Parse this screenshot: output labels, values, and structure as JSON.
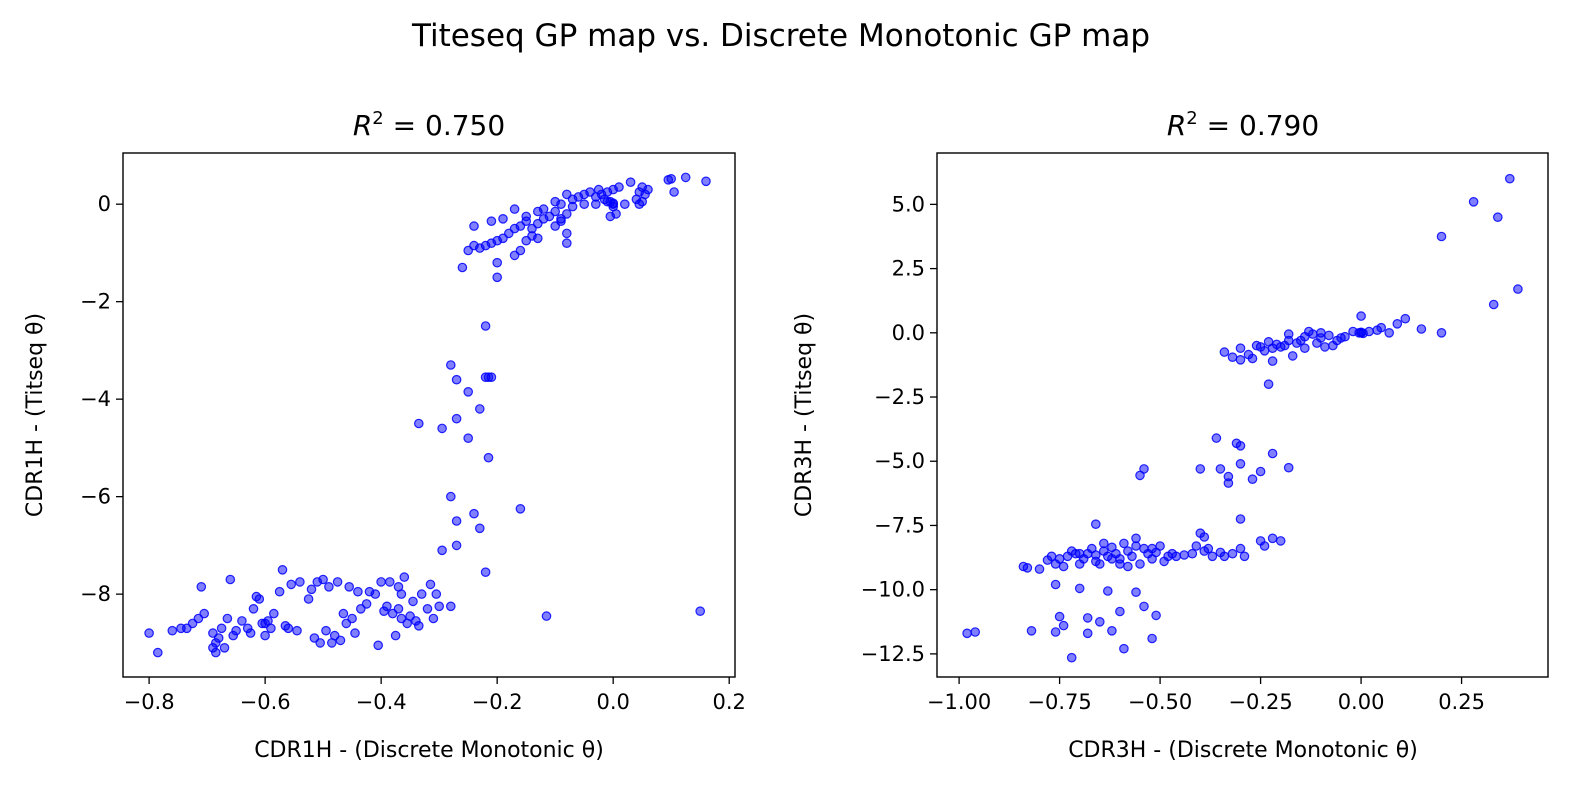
{
  "figure_title": "Titeseq GP map vs. Discrete Monotonic GP map",
  "marker_color": "#0000ff",
  "chart_data": [
    {
      "type": "scatter",
      "title_prefix": "R",
      "title_sup": "2",
      "title_suffix": " = 0.750",
      "xlabel": "CDR1H - (Discrete Monotonic θ)",
      "ylabel": "CDR1H - (Titseq θ)",
      "xlim": [
        -0.845,
        0.21
      ],
      "ylim": [
        -9.7,
        1.05
      ],
      "xticks": [
        -0.8,
        -0.6,
        -0.4,
        -0.2,
        0.0,
        0.2
      ],
      "xtick_labels": [
        "−0.8",
        "−0.6",
        "−0.4",
        "−0.2",
        "0.0",
        "0.2"
      ],
      "yticks": [
        0,
        -2,
        -4,
        -6,
        -8
      ],
      "ytick_labels": [
        "0",
        "−2",
        "−4",
        "−6",
        "−8"
      ],
      "grid": false,
      "points": [
        [
          0.125,
          0.55
        ],
        [
          0.1,
          0.52
        ],
        [
          0.095,
          0.5
        ],
        [
          0.16,
          0.47
        ],
        [
          0.105,
          0.25
        ],
        [
          0.06,
          0.3
        ],
        [
          0.05,
          0.35
        ],
        [
          0.045,
          0.25
        ],
        [
          0.055,
          0.2
        ],
        [
          0.04,
          0.1
        ],
        [
          0.05,
          0.05
        ],
        [
          0.045,
          0.0
        ],
        [
          0.03,
          0.45
        ],
        [
          0.01,
          0.35
        ],
        [
          0.0,
          0.3
        ],
        [
          -0.01,
          0.25
        ],
        [
          -0.02,
          0.2
        ],
        [
          -0.03,
          0.15
        ],
        [
          -0.025,
          0.3
        ],
        [
          -0.04,
          0.25
        ],
        [
          -0.05,
          0.2
        ],
        [
          -0.06,
          0.15
        ],
        [
          -0.07,
          0.1
        ],
        [
          -0.08,
          0.2
        ],
        [
          -0.09,
          0.0
        ],
        [
          -0.1,
          0.05
        ],
        [
          0.0,
          0.0
        ],
        [
          0.0,
          -0.05
        ],
        [
          0.0,
          0.02
        ],
        [
          0.005,
          -0.2
        ],
        [
          0.02,
          0.0
        ],
        [
          -0.005,
          0.05
        ],
        [
          -0.01,
          0.05
        ],
        [
          -0.005,
          -0.25
        ],
        [
          -0.015,
          0.1
        ],
        [
          -0.03,
          0.0
        ],
        [
          -0.05,
          0.0
        ],
        [
          -0.07,
          -0.05
        ],
        [
          -0.08,
          -0.2
        ],
        [
          -0.09,
          -0.35
        ],
        [
          -0.1,
          -0.15
        ],
        [
          -0.11,
          -0.25
        ],
        [
          -0.12,
          -0.3
        ],
        [
          -0.13,
          -0.4
        ],
        [
          -0.14,
          -0.5
        ],
        [
          -0.15,
          -0.35
        ],
        [
          -0.16,
          -0.45
        ],
        [
          -0.17,
          -0.5
        ],
        [
          -0.18,
          -0.6
        ],
        [
          -0.19,
          -0.7
        ],
        [
          -0.2,
          -0.75
        ],
        [
          -0.21,
          -0.8
        ],
        [
          -0.22,
          -0.85
        ],
        [
          -0.23,
          -0.9
        ],
        [
          -0.24,
          -0.85
        ],
        [
          -0.25,
          -0.95
        ],
        [
          -0.26,
          -1.3
        ],
        [
          -0.24,
          -0.45
        ],
        [
          -0.21,
          -0.35
        ],
        [
          -0.19,
          -0.3
        ],
        [
          -0.17,
          -0.1
        ],
        [
          -0.15,
          -0.25
        ],
        [
          -0.13,
          -0.15
        ],
        [
          -0.12,
          -0.1
        ],
        [
          -0.14,
          -0.65
        ],
        [
          -0.15,
          -0.75
        ],
        [
          -0.16,
          -0.95
        ],
        [
          -0.17,
          -1.05
        ],
        [
          -0.08,
          -0.6
        ],
        [
          -0.08,
          -0.8
        ],
        [
          -0.2,
          -1.2
        ],
        [
          -0.2,
          -1.5
        ],
        [
          -0.13,
          -0.7
        ],
        [
          -0.1,
          -0.45
        ],
        [
          -0.09,
          -0.3
        ],
        [
          -0.22,
          -2.5
        ],
        [
          -0.22,
          -3.55
        ],
        [
          -0.215,
          -3.55
        ],
        [
          -0.21,
          -3.55
        ],
        [
          -0.28,
          -3.3
        ],
        [
          -0.27,
          -3.6
        ],
        [
          -0.25,
          -3.85
        ],
        [
          -0.23,
          -4.2
        ],
        [
          -0.27,
          -4.4
        ],
        [
          -0.335,
          -4.5
        ],
        [
          -0.295,
          -4.6
        ],
        [
          -0.25,
          -4.8
        ],
        [
          -0.215,
          -5.2
        ],
        [
          -0.28,
          -6.0
        ],
        [
          -0.16,
          -6.25
        ],
        [
          -0.24,
          -6.35
        ],
        [
          -0.27,
          -6.5
        ],
        [
          -0.23,
          -6.65
        ],
        [
          -0.27,
          -7.0
        ],
        [
          -0.295,
          -7.1
        ],
        [
          -0.22,
          -7.55
        ],
        [
          -0.28,
          -8.25
        ],
        [
          -0.115,
          -8.45
        ],
        [
          0.15,
          -8.35
        ],
        [
          -0.8,
          -8.8
        ],
        [
          -0.785,
          -9.2
        ],
        [
          -0.76,
          -8.75
        ],
        [
          -0.745,
          -8.7
        ],
        [
          -0.735,
          -8.7
        ],
        [
          -0.725,
          -8.6
        ],
        [
          -0.715,
          -8.5
        ],
        [
          -0.705,
          -8.4
        ],
        [
          -0.71,
          -7.85
        ],
        [
          -0.69,
          -8.8
        ],
        [
          -0.685,
          -9.0
        ],
        [
          -0.685,
          -9.2
        ],
        [
          -0.68,
          -8.9
        ],
        [
          -0.675,
          -8.7
        ],
        [
          -0.67,
          -9.1
        ],
        [
          -0.665,
          -8.5
        ],
        [
          -0.655,
          -8.85
        ],
        [
          -0.66,
          -7.7
        ],
        [
          -0.65,
          -8.75
        ],
        [
          -0.64,
          -8.55
        ],
        [
          -0.63,
          -8.7
        ],
        [
          -0.625,
          -8.8
        ],
        [
          -0.62,
          -8.3
        ],
        [
          -0.615,
          -8.05
        ],
        [
          -0.61,
          -8.1
        ],
        [
          -0.605,
          -8.6
        ],
        [
          -0.6,
          -8.85
        ],
        [
          -0.595,
          -8.55
        ],
        [
          -0.59,
          -8.7
        ],
        [
          -0.585,
          -8.4
        ],
        [
          -0.575,
          -7.95
        ],
        [
          -0.57,
          -7.5
        ],
        [
          -0.565,
          -8.65
        ],
        [
          -0.56,
          -8.7
        ],
        [
          -0.555,
          -7.8
        ],
        [
          -0.545,
          -8.75
        ],
        [
          -0.54,
          -7.75
        ],
        [
          -0.525,
          -8.1
        ],
        [
          -0.52,
          -7.9
        ],
        [
          -0.515,
          -8.9
        ],
        [
          -0.51,
          -7.75
        ],
        [
          -0.505,
          -9.0
        ],
        [
          -0.5,
          -7.7
        ],
        [
          -0.495,
          -8.75
        ],
        [
          -0.49,
          -7.85
        ],
        [
          -0.485,
          -9.0
        ],
        [
          -0.48,
          -8.85
        ],
        [
          -0.475,
          -7.75
        ],
        [
          -0.47,
          -8.95
        ],
        [
          -0.465,
          -8.4
        ],
        [
          -0.46,
          -8.6
        ],
        [
          -0.455,
          -7.85
        ],
        [
          -0.45,
          -8.5
        ],
        [
          -0.445,
          -8.8
        ],
        [
          -0.435,
          -8.3
        ],
        [
          -0.425,
          -8.2
        ],
        [
          -0.42,
          -7.95
        ],
        [
          -0.41,
          -8.0
        ],
        [
          -0.405,
          -9.05
        ],
        [
          -0.4,
          -7.75
        ],
        [
          -0.395,
          -8.35
        ],
        [
          -0.39,
          -8.25
        ],
        [
          -0.385,
          -7.75
        ],
        [
          -0.38,
          -8.4
        ],
        [
          -0.375,
          -8.85
        ],
        [
          -0.37,
          -7.85
        ],
        [
          -0.365,
          -8.5
        ],
        [
          -0.36,
          -7.65
        ],
        [
          -0.355,
          -8.6
        ],
        [
          -0.35,
          -8.45
        ],
        [
          -0.345,
          -8.15
        ],
        [
          -0.34,
          -8.55
        ],
        [
          -0.335,
          -8.65
        ],
        [
          -0.33,
          -8.0
        ],
        [
          -0.32,
          -8.3
        ],
        [
          -0.315,
          -7.8
        ],
        [
          -0.31,
          -8.5
        ],
        [
          -0.305,
          -8.0
        ],
        [
          -0.3,
          -8.25
        ],
        [
          -0.365,
          -8.0
        ],
        [
          -0.37,
          -8.3
        ],
        [
          -0.44,
          -7.95
        ],
        [
          -0.6,
          -8.6
        ],
        [
          -0.69,
          -9.1
        ]
      ]
    },
    {
      "type": "scatter",
      "title_prefix": "R",
      "title_sup": "2",
      "title_suffix": " = 0.790",
      "xlabel": "CDR3H - (Discrete Monotonic θ)",
      "ylabel": "CDR3H - (Titseq θ)",
      "xlim": [
        -1.055,
        0.465
      ],
      "ylim": [
        -13.4,
        7.0
      ],
      "xticks": [
        -1.0,
        -0.75,
        -0.5,
        -0.25,
        0.0,
        0.25
      ],
      "xtick_labels": [
        "−1.00",
        "−0.75",
        "−0.50",
        "−0.25",
        "0.00",
        "0.25"
      ],
      "yticks": [
        5.0,
        2.5,
        0.0,
        -2.5,
        -5.0,
        -7.5,
        -10.0,
        -12.5
      ],
      "ytick_labels": [
        "5.0",
        "2.5",
        "0.0",
        "−2.5",
        "−5.0",
        "−7.5",
        "−10.0",
        "−12.5"
      ],
      "grid": false,
      "points": [
        [
          0.37,
          6.0
        ],
        [
          0.28,
          5.1
        ],
        [
          0.34,
          4.5
        ],
        [
          0.2,
          3.75
        ],
        [
          0.39,
          1.7
        ],
        [
          0.33,
          1.1
        ],
        [
          0.0,
          0.0
        ],
        [
          0.0,
          0.02
        ],
        [
          0.005,
          -0.02
        ],
        [
          -0.005,
          0.0
        ],
        [
          0.0,
          0.65
        ],
        [
          0.11,
          0.55
        ],
        [
          0.09,
          0.35
        ],
        [
          0.05,
          0.2
        ],
        [
          0.04,
          0.1
        ],
        [
          0.02,
          0.05
        ],
        [
          0.15,
          0.15
        ],
        [
          0.07,
          0.0
        ],
        [
          0.2,
          0.0
        ],
        [
          -0.02,
          0.05
        ],
        [
          -0.04,
          -0.15
        ],
        [
          -0.06,
          -0.3
        ],
        [
          -0.08,
          -0.1
        ],
        [
          -0.1,
          -0.2
        ],
        [
          -0.12,
          -0.05
        ],
        [
          -0.14,
          -0.15
        ],
        [
          -0.16,
          -0.4
        ],
        [
          -0.18,
          -0.3
        ],
        [
          -0.2,
          -0.55
        ],
        [
          -0.22,
          -0.6
        ],
        [
          -0.24,
          -0.7
        ],
        [
          -0.26,
          -0.5
        ],
        [
          -0.28,
          -0.85
        ],
        [
          -0.3,
          -0.6
        ],
        [
          -0.32,
          -0.95
        ],
        [
          -0.34,
          -0.75
        ],
        [
          -0.1,
          0.0
        ],
        [
          -0.13,
          0.05
        ],
        [
          -0.15,
          -0.3
        ],
        [
          -0.17,
          -0.9
        ],
        [
          -0.19,
          -0.5
        ],
        [
          -0.21,
          -0.45
        ],
        [
          -0.23,
          -0.35
        ],
        [
          -0.25,
          -0.55
        ],
        [
          -0.27,
          -1.0
        ],
        [
          -0.3,
          -1.05
        ],
        [
          -0.22,
          -1.1
        ],
        [
          -0.23,
          -2.0
        ],
        [
          -0.11,
          -0.4
        ],
        [
          -0.07,
          -0.5
        ],
        [
          -0.05,
          -0.2
        ],
        [
          -0.09,
          -0.55
        ],
        [
          -0.14,
          -0.6
        ],
        [
          -0.18,
          -0.05
        ],
        [
          -0.36,
          -4.1
        ],
        [
          -0.31,
          -4.3
        ],
        [
          -0.3,
          -4.4
        ],
        [
          -0.22,
          -4.7
        ],
        [
          -0.35,
          -5.3
        ],
        [
          -0.4,
          -5.3
        ],
        [
          -0.3,
          -5.1
        ],
        [
          -0.33,
          -5.6
        ],
        [
          -0.25,
          -5.4
        ],
        [
          -0.54,
          -5.3
        ],
        [
          -0.55,
          -5.55
        ],
        [
          -0.18,
          -5.25
        ],
        [
          -0.33,
          -5.85
        ],
        [
          -0.27,
          -5.7
        ],
        [
          -0.3,
          -7.25
        ],
        [
          -0.66,
          -7.45
        ],
        [
          -0.4,
          -7.8
        ],
        [
          -0.39,
          -7.95
        ],
        [
          -0.25,
          -8.1
        ],
        [
          -0.2,
          -8.1
        ],
        [
          -0.22,
          -8.0
        ],
        [
          -0.84,
          -9.1
        ],
        [
          -0.83,
          -9.15
        ],
        [
          -0.8,
          -9.2
        ],
        [
          -0.78,
          -8.85
        ],
        [
          -0.77,
          -8.7
        ],
        [
          -0.76,
          -9.0
        ],
        [
          -0.75,
          -8.8
        ],
        [
          -0.74,
          -9.1
        ],
        [
          -0.73,
          -8.7
        ],
        [
          -0.72,
          -8.5
        ],
        [
          -0.71,
          -8.6
        ],
        [
          -0.7,
          -9.0
        ],
        [
          -0.69,
          -8.8
        ],
        [
          -0.68,
          -8.6
        ],
        [
          -0.67,
          -8.4
        ],
        [
          -0.66,
          -8.65
        ],
        [
          -0.65,
          -9.0
        ],
        [
          -0.64,
          -8.5
        ],
        [
          -0.63,
          -8.7
        ],
        [
          -0.62,
          -8.35
        ],
        [
          -0.61,
          -8.6
        ],
        [
          -0.6,
          -8.8
        ],
        [
          -0.59,
          -8.2
        ],
        [
          -0.58,
          -8.5
        ],
        [
          -0.57,
          -8.7
        ],
        [
          -0.56,
          -8.3
        ],
        [
          -0.55,
          -9.0
        ],
        [
          -0.54,
          -8.4
        ],
        [
          -0.53,
          -8.6
        ],
        [
          -0.52,
          -8.4
        ],
        [
          -0.51,
          -8.55
        ],
        [
          -0.5,
          -8.3
        ],
        [
          -0.49,
          -8.9
        ],
        [
          -0.48,
          -8.7
        ],
        [
          -0.47,
          -8.6
        ],
        [
          -0.46,
          -8.7
        ],
        [
          -0.44,
          -8.65
        ],
        [
          -0.42,
          -8.6
        ],
        [
          -0.41,
          -8.3
        ],
        [
          -0.39,
          -8.5
        ],
        [
          -0.38,
          -8.4
        ],
        [
          -0.37,
          -8.7
        ],
        [
          -0.35,
          -8.55
        ],
        [
          -0.34,
          -8.7
        ],
        [
          -0.32,
          -8.6
        ],
        [
          -0.3,
          -8.4
        ],
        [
          -0.29,
          -8.7
        ],
        [
          -0.24,
          -8.3
        ],
        [
          -0.6,
          -9.0
        ],
        [
          -0.58,
          -9.1
        ],
        [
          -0.62,
          -8.8
        ],
        [
          -0.66,
          -8.9
        ],
        [
          -0.64,
          -8.2
        ],
        [
          -0.56,
          -8.0
        ],
        [
          -0.52,
          -8.8
        ],
        [
          -0.7,
          -8.6
        ],
        [
          -0.98,
          -11.7
        ],
        [
          -0.96,
          -11.65
        ],
        [
          -0.82,
          -11.6
        ],
        [
          -0.75,
          -11.05
        ],
        [
          -0.76,
          -11.65
        ],
        [
          -0.76,
          -9.8
        ],
        [
          -0.7,
          -9.95
        ],
        [
          -0.72,
          -12.65
        ],
        [
          -0.68,
          -11.1
        ],
        [
          -0.65,
          -11.25
        ],
        [
          -0.63,
          -10.05
        ],
        [
          -0.6,
          -10.85
        ],
        [
          -0.59,
          -12.3
        ],
        [
          -0.56,
          -10.1
        ],
        [
          -0.54,
          -10.65
        ],
        [
          -0.52,
          -11.9
        ],
        [
          -0.51,
          -11.0
        ],
        [
          -0.68,
          -11.7
        ],
        [
          -0.62,
          -11.6
        ],
        [
          -0.74,
          -11.4
        ]
      ]
    }
  ]
}
